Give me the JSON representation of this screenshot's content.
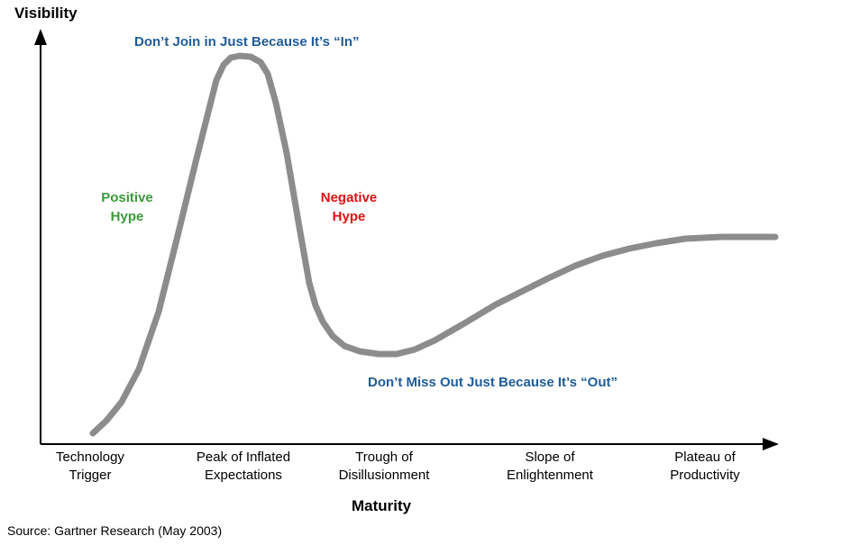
{
  "axes": {
    "y_title": "Visibility",
    "x_title": "Maturity"
  },
  "stages": [
    "Technology\nTrigger",
    "Peak of Inflated\nExpectations",
    "Trough of\nDisillusionment",
    "Slope of\nEnlightenment",
    "Plateau of\nProductivity"
  ],
  "annotations": {
    "peak": "Don’t Join in Just Because It’s “In”",
    "positive": "Positive\nHype",
    "negative": "Negative\nHype",
    "trough": "Don’t Miss Out Just Because It’s “Out”"
  },
  "source": "Source: Gartner Research (May 2003)",
  "colors": {
    "curve": "#8c8c8c",
    "axis": "#000000",
    "blue": "#1f5c99",
    "green": "#3a9a3a",
    "red": "#e01010"
  }
}
